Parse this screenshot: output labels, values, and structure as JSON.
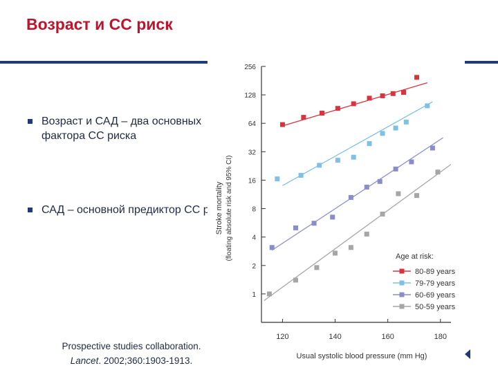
{
  "slide": {
    "title": "Возраст и СС риск",
    "bullets": [
      "Возраст и САД – два основных фактора СС риска",
      "САД – основной предиктор СС риска"
    ],
    "citation": {
      "line1": "Prospective studies collaboration.",
      "journal": "Lancet",
      "details": ". 2002;360:1903-1913."
    }
  },
  "colors": {
    "title": "#c0132b",
    "rule": "#1f3b7a",
    "text": "#1f2a44"
  },
  "chart_data": {
    "type": "scatter",
    "title": "",
    "xlabel": "Usual systolic blood pressure (mm Hg)",
    "ylabel": "Stroke mortality",
    "ylabel_sub": "(floating absolute risk and 95% CI)",
    "xlim": [
      112,
      184
    ],
    "ylim": [
      0.5,
      256
    ],
    "yscale": "log2",
    "x_ticks": [
      120,
      140,
      160,
      180
    ],
    "y_ticks": [
      1,
      2,
      4,
      8,
      16,
      32,
      64,
      128,
      256
    ],
    "legend_title": "Age at risk:",
    "legend_position": "bottom-right",
    "fit_lines": true,
    "series": [
      {
        "name": "80-89 years",
        "color": "#d9333f",
        "x": [
          120,
          128,
          135,
          141,
          147,
          153,
          158,
          162,
          166,
          171
        ],
        "y": [
          62,
          74,
          82,
          92,
          103,
          118,
          125,
          132,
          136,
          196
        ],
        "fit": [
          [
            120,
            60
          ],
          [
            175,
            172
          ]
        ]
      },
      {
        "name": "79-79 years",
        "color": "#7fc0e3",
        "x": [
          118,
          127,
          134,
          141,
          147,
          153,
          158,
          163,
          167,
          175
        ],
        "y": [
          16.5,
          18,
          23,
          26,
          28,
          39,
          50,
          57,
          66,
          98
        ],
        "fit": [
          [
            120,
            14
          ],
          [
            177,
            108
          ]
        ]
      },
      {
        "name": "60-69 years",
        "color": "#8a8dc8",
        "x": [
          116,
          125,
          132,
          139,
          146,
          152,
          157,
          163,
          169,
          177
        ],
        "y": [
          3.1,
          5.0,
          5.6,
          6.5,
          10.5,
          13.5,
          15.5,
          21,
          25,
          35
        ],
        "fit": [
          [
            116,
            2.9
          ],
          [
            181,
            45
          ]
        ]
      },
      {
        "name": "50-59 years",
        "color": "#a6a6a6",
        "x": [
          115,
          125,
          133,
          140,
          146,
          152,
          158,
          164,
          171,
          179
        ],
        "y": [
          1.0,
          1.4,
          1.9,
          2.7,
          3.1,
          4.3,
          7.0,
          11.5,
          11,
          19.5
        ],
        "fit": [
          [
            113,
            0.85
          ],
          [
            184,
            23.5
          ]
        ]
      }
    ]
  }
}
